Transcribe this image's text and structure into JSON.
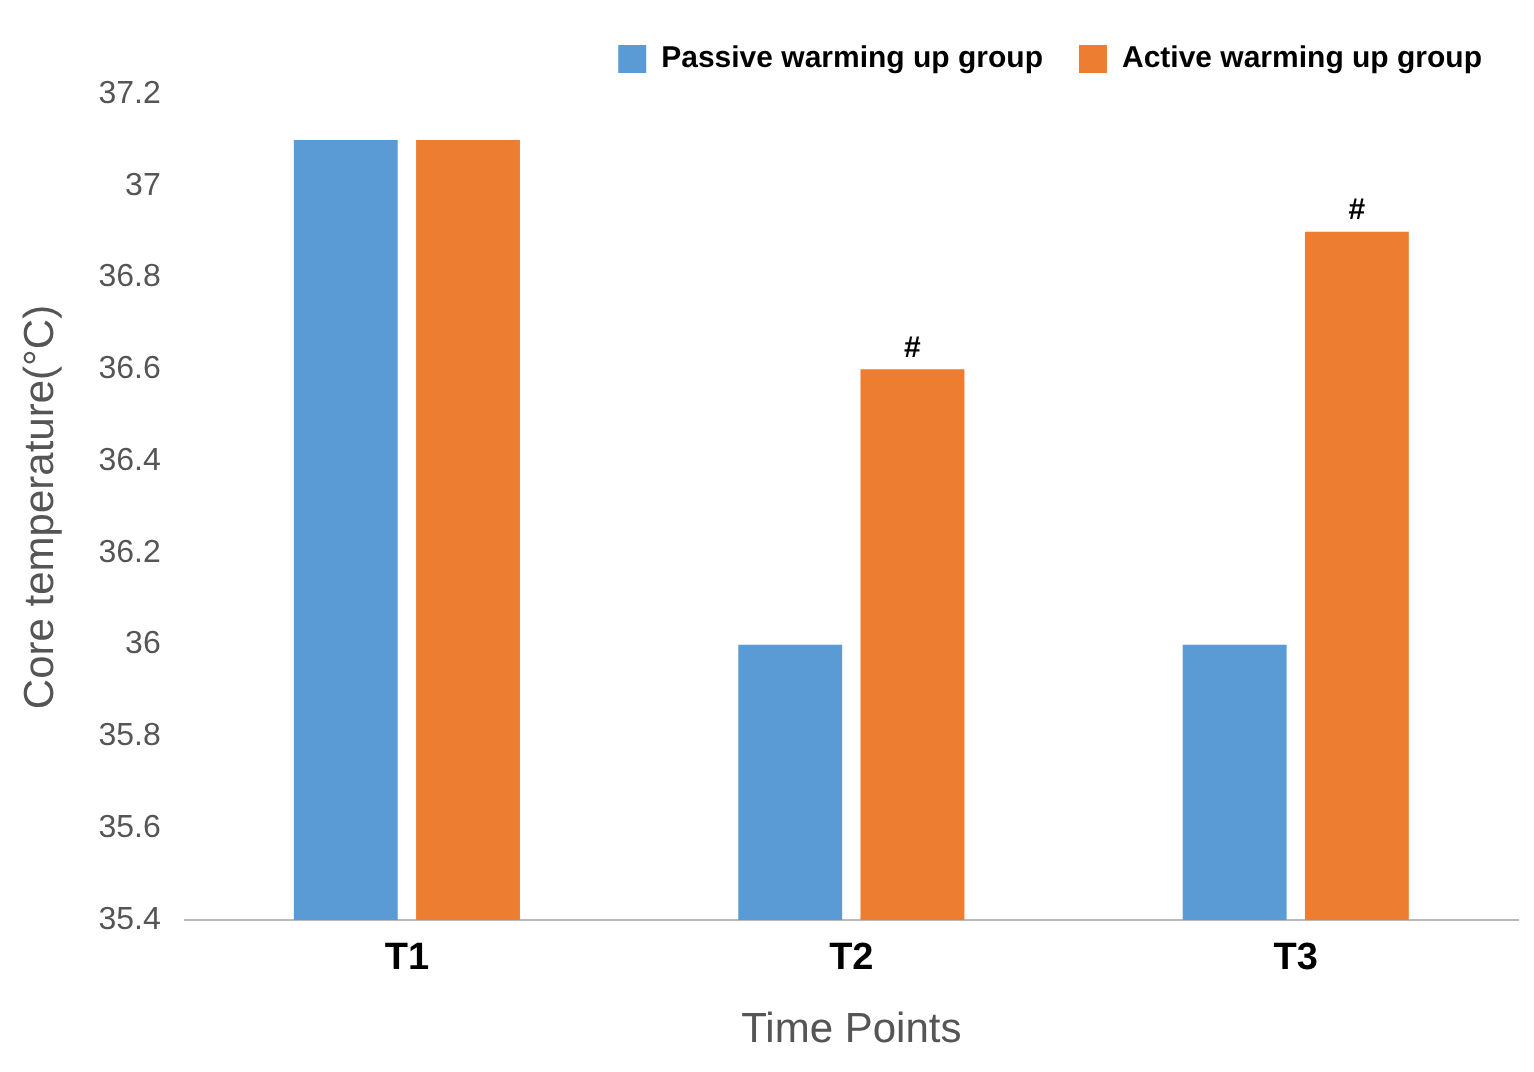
{
  "chart_data": {
    "type": "bar",
    "xlabel": "Time Points",
    "ylabel": "Core temperature(°C)",
    "categories": [
      "T1",
      "T2",
      "T3"
    ],
    "series": [
      {
        "name": "Passive warming up group",
        "color": "#5b9bd5",
        "values": [
          37.1,
          36.0,
          36.0
        ]
      },
      {
        "name": "Active warming up group",
        "color": "#ed7d31",
        "values": [
          37.1,
          36.6,
          36.9
        ]
      }
    ],
    "ylim": [
      35.4,
      37.2
    ],
    "yticks": [
      35.4,
      35.6,
      35.8,
      36,
      36.2,
      36.4,
      36.6,
      36.8,
      37,
      37.2
    ],
    "grid": false,
    "legend": "top right",
    "annotations": [
      {
        "text": "#",
        "x": "T2",
        "y": 36.6
      },
      {
        "text": "#",
        "x": "T3",
        "y": 36.9
      }
    ]
  }
}
